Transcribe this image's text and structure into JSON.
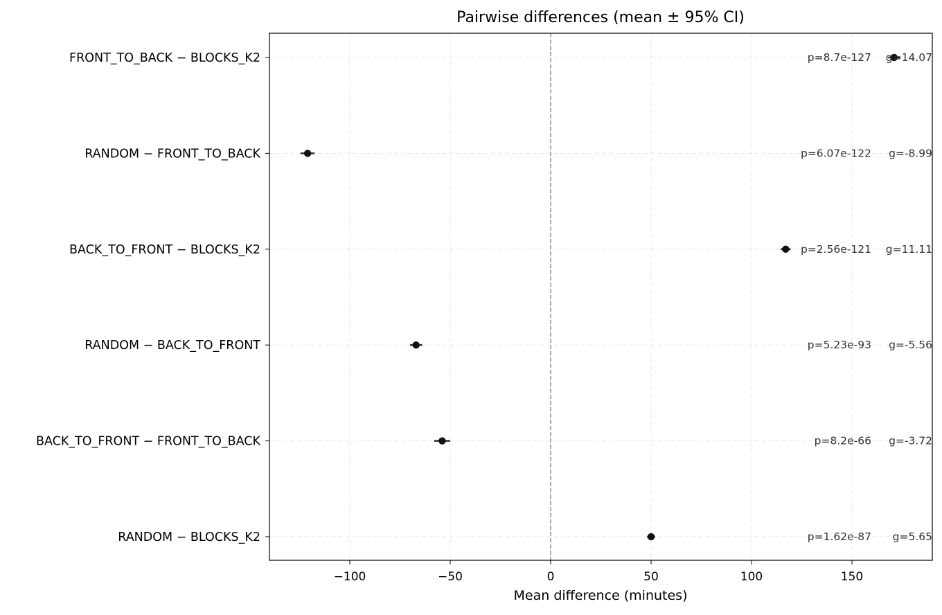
{
  "chart_data": {
    "type": "scatter",
    "title": "Pairwise differences (mean ± 95% CI)",
    "xlabel": "Mean difference (minutes)",
    "ylabel": "",
    "xlim": [
      -140,
      190
    ],
    "xticks": [
      -100,
      -50,
      0,
      50,
      100,
      150
    ],
    "xtick_labels": [
      "−100",
      "−50",
      "0",
      "50",
      "100",
      "150"
    ],
    "grid": true,
    "reference_line_x": 0,
    "comparisons": [
      {
        "label": "FRONT_TO_BACK − BLOCKS_K2",
        "mean": 171,
        "ci_low": 168,
        "ci_high": 174,
        "p_text": "p=8.7e-127",
        "g_text": "g=14.07"
      },
      {
        "label": "RANDOM − FRONT_TO_BACK",
        "mean": -121,
        "ci_low": -124.5,
        "ci_high": -117.5,
        "p_text": "p=6.07e-122",
        "g_text": "g=-8.99"
      },
      {
        "label": "BACK_TO_FRONT − BLOCKS_K2",
        "mean": 117,
        "ci_low": 114.5,
        "ci_high": 119.5,
        "p_text": "p=2.56e-121",
        "g_text": "g=11.11"
      },
      {
        "label": "RANDOM − BACK_TO_FRONT",
        "mean": -67,
        "ci_low": -70,
        "ci_high": -64,
        "p_text": "p=5.23e-93",
        "g_text": "g=-5.56"
      },
      {
        "label": "BACK_TO_FRONT − FRONT_TO_BACK",
        "mean": -54,
        "ci_low": -58,
        "ci_high": -50,
        "p_text": "p=8.2e-66",
        "g_text": "g=-3.72"
      },
      {
        "label": "RANDOM − BLOCKS_K2",
        "mean": 50,
        "ci_low": 48,
        "ci_high": 52,
        "p_text": "p=1.62e-87",
        "g_text": "g=5.65"
      }
    ],
    "colors": {
      "point": "#111111",
      "errorbar": "#333333",
      "grid": "#e6e6e6",
      "reference_line": "#888888",
      "annotation": "#333333",
      "text": "#000000"
    }
  }
}
